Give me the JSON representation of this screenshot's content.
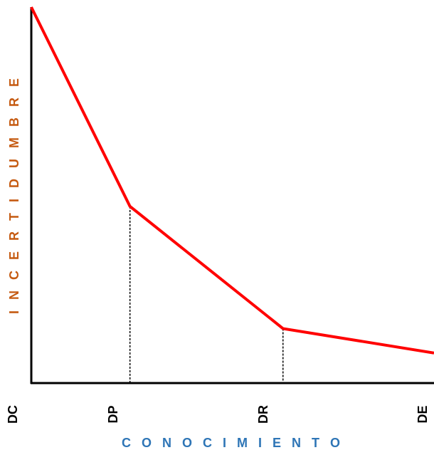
{
  "chart_data": {
    "type": "line",
    "categories": [
      "DC",
      "DP",
      "DR",
      "DE"
    ],
    "series": [
      {
        "x": [
          0,
          0.245,
          0.625,
          1.0
        ],
        "values": [
          1.0,
          0.47,
          0.145,
          0.08
        ]
      }
    ],
    "guides_at": [
      0.245,
      0.625
    ],
    "xlabel": "C O N O C I M I E N T O",
    "ylabel": "I N C E R T I D U M B R E",
    "xlim": [
      0,
      1
    ],
    "ylim": [
      0,
      1
    ],
    "grid": false,
    "legend": false
  },
  "colors": {
    "line": "#ff0000",
    "axis": "#000000",
    "xlabel": "#2e75b6",
    "ylabel": "#c55a11"
  }
}
